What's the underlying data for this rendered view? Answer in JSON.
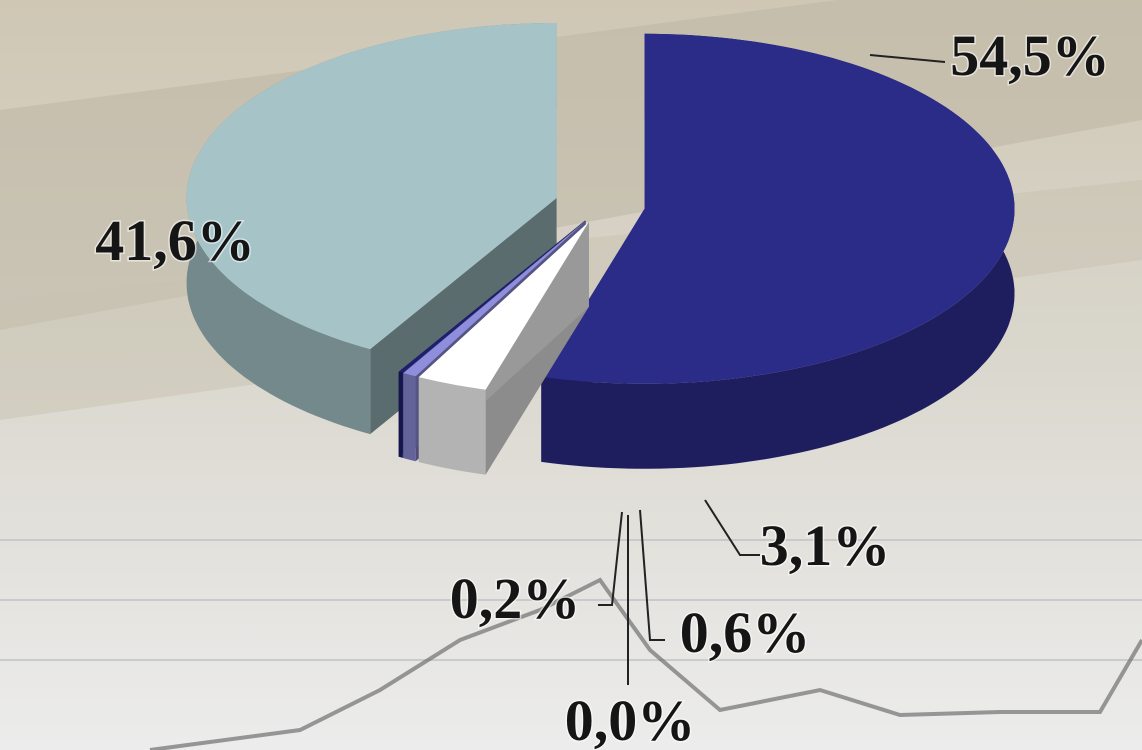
{
  "chart_data": {
    "type": "pie",
    "values": [
      54.5,
      3.1,
      0.6,
      0.0,
      0.2,
      41.6
    ],
    "value_labels": [
      "54,5%",
      "3,1%",
      "0,6%",
      "0,0%",
      "0,2%",
      "41,6%"
    ],
    "colors": [
      "#2b2b88",
      "#ffffff",
      "#8e8edc",
      "#6a6ac0",
      "#1e1e70",
      "#a6c4c8"
    ]
  }
}
